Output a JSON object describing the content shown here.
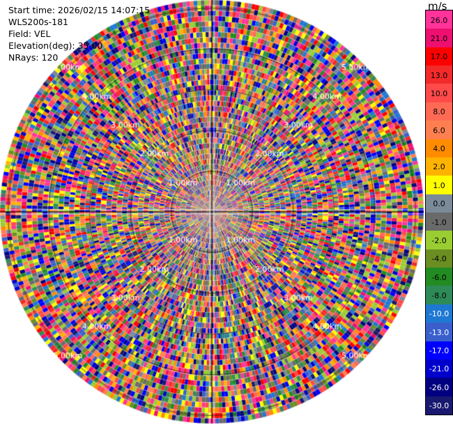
{
  "info": {
    "start_time": "Start time: 2026/02/15 14:07:15",
    "site": "WLS200s-181",
    "field": "Field: VEL",
    "elevation": "Elevation(deg): 35.00",
    "nrays": "NRays: 120"
  },
  "chart_data": {
    "type": "polar-ppi",
    "field": "VEL",
    "unit": "m/s",
    "n_rays": 120,
    "range_rings_km": [
      1.0,
      2.0,
      3.0,
      4.0,
      5.0
    ],
    "ring_labels": [
      "1.00km",
      "2.00km",
      "3.00km",
      "4.00km",
      "5.00km"
    ],
    "range_max_km": 5.2,
    "colorbar": {
      "ticks": [
        "26.0",
        "21.0",
        "17.0",
        "13.0",
        "10.0",
        "8.0",
        "6.0",
        "4.0",
        "2.0",
        "1.0",
        "0.0",
        "-1.0",
        "-2.0",
        "-4.0",
        "-6.0",
        "-8.0",
        "-10.0",
        "-13.0",
        "-17.0",
        "-21.0",
        "-26.0",
        "-30.0"
      ],
      "colors": [
        "#ff3399",
        "#ee1070",
        "#ff0000",
        "#f22a2a",
        "#ff4a4a",
        "#ff6a55",
        "#ff7f50",
        "#ff8c00",
        "#ffb300",
        "#ffff00",
        "#7a8a99",
        "#6a6a6a",
        "#9acd32",
        "#6b8e23",
        "#228b22",
        "#2e8b57",
        "#1e78d2",
        "#3a5fcd",
        "#0000ff",
        "#0000cd",
        "#000080",
        "#191970"
      ]
    }
  }
}
